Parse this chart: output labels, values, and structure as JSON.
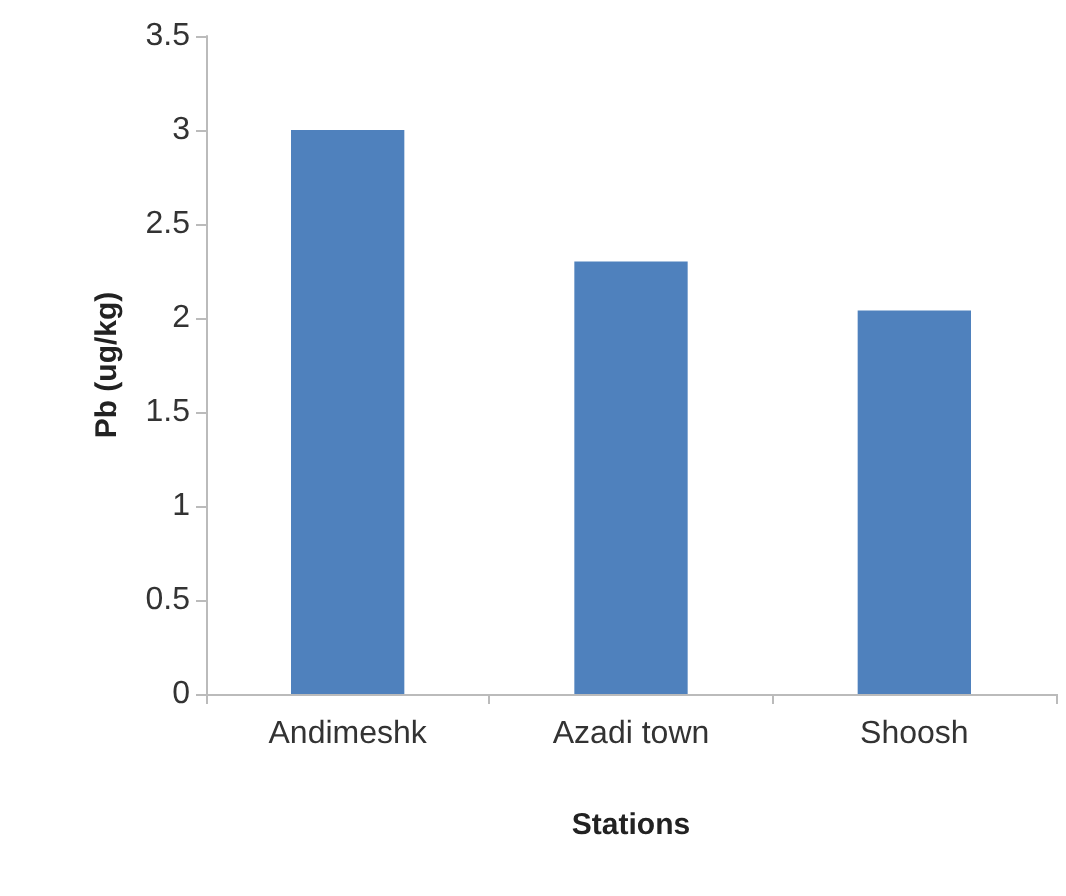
{
  "chart_data": {
    "type": "bar",
    "xlabel": "Stations",
    "ylabel": "Pb (ug/kg)",
    "categories": [
      "Andimeshk",
      "Azadi town",
      "Shoosh"
    ],
    "values": [
      3.0,
      2.3,
      2.04
    ],
    "color": "#4f81bd",
    "ylim": [
      0,
      3.5
    ],
    "yticks": [
      0,
      0.5,
      1,
      1.5,
      2,
      2.5,
      3,
      3.5
    ],
    "grid": false
  }
}
